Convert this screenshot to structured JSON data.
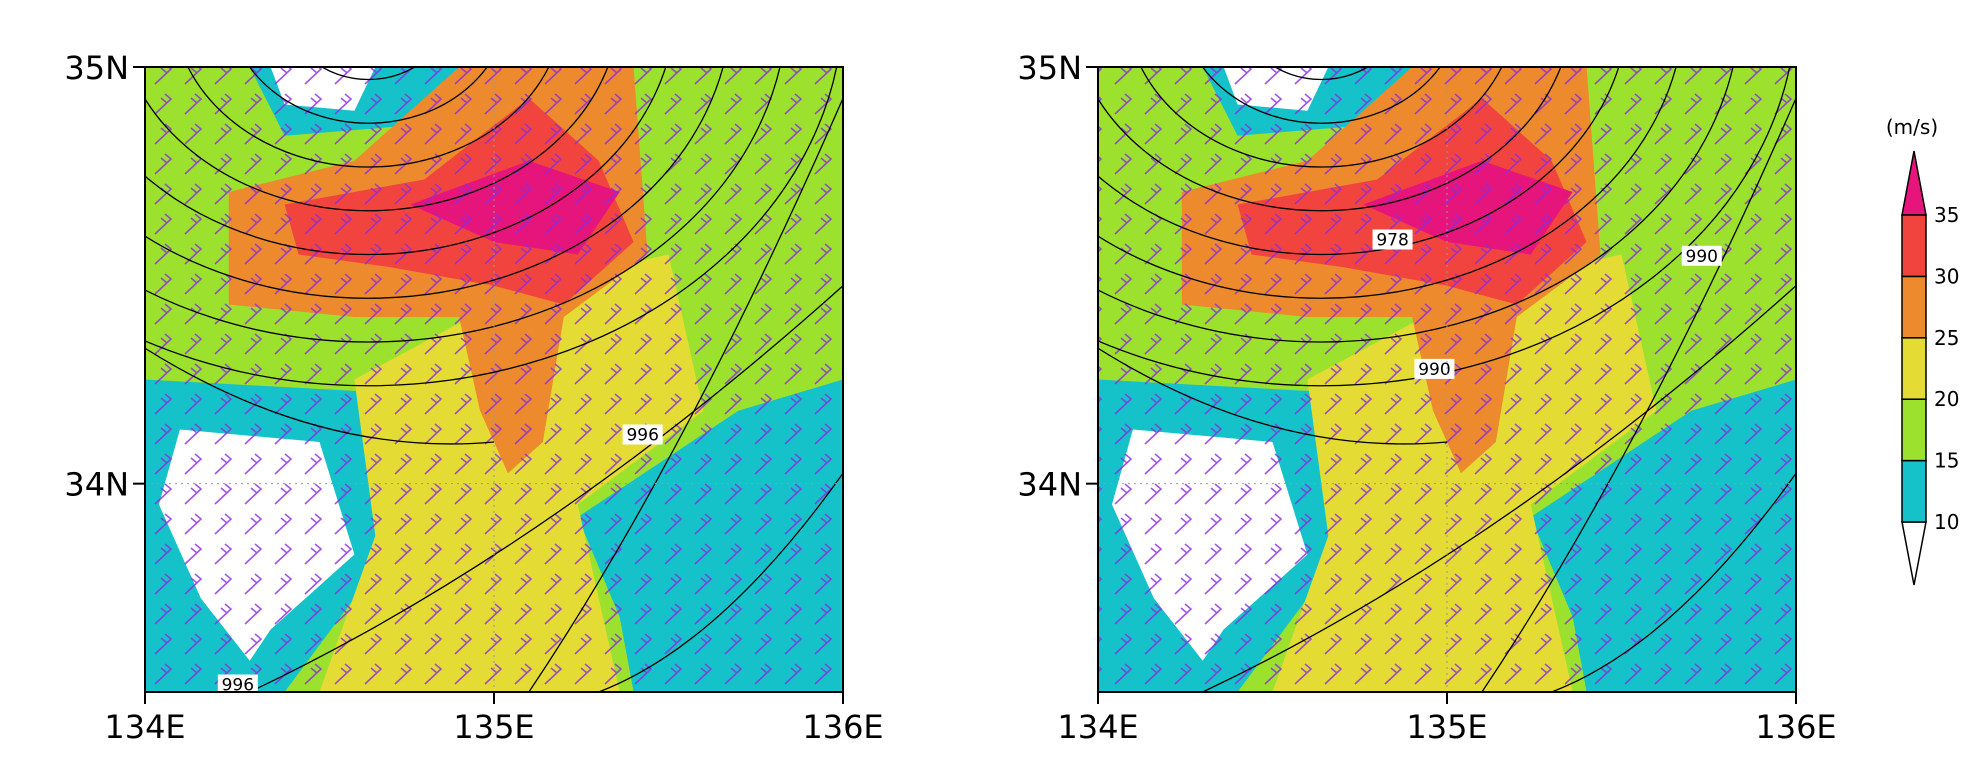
{
  "panels": [
    {
      "xlim": [
        134,
        136
      ],
      "ylim": [
        33.5,
        35
      ],
      "xticks": [
        {
          "value": 134,
          "label": "134E"
        },
        {
          "value": 135,
          "label": "135E"
        },
        {
          "value": 136,
          "label": "136E"
        }
      ],
      "yticks": [
        {
          "value": 34,
          "label": "34N"
        },
        {
          "value": 35,
          "label": "35N"
        }
      ],
      "grid": true,
      "contour_labels": [
        996,
        996
      ]
    },
    {
      "xlim": [
        134,
        136
      ],
      "ylim": [
        33.5,
        35
      ],
      "xticks": [
        {
          "value": 134,
          "label": "134E"
        },
        {
          "value": 135,
          "label": "135E"
        },
        {
          "value": 136,
          "label": "136E"
        }
      ],
      "yticks": [
        {
          "value": 34,
          "label": "34N"
        },
        {
          "value": 35,
          "label": "35N"
        }
      ],
      "grid": true,
      "contour_labels": [
        978,
        990,
        990
      ]
    }
  ],
  "colorbar": {
    "unit": "(m/s)",
    "levels": [
      10,
      15,
      20,
      25,
      30,
      35
    ],
    "colors": [
      "#ffffff",
      "#15c2c9",
      "#9de12f",
      "#e4dc35",
      "#ec8a2d",
      "#f2443f",
      "#e6157b"
    ]
  }
}
